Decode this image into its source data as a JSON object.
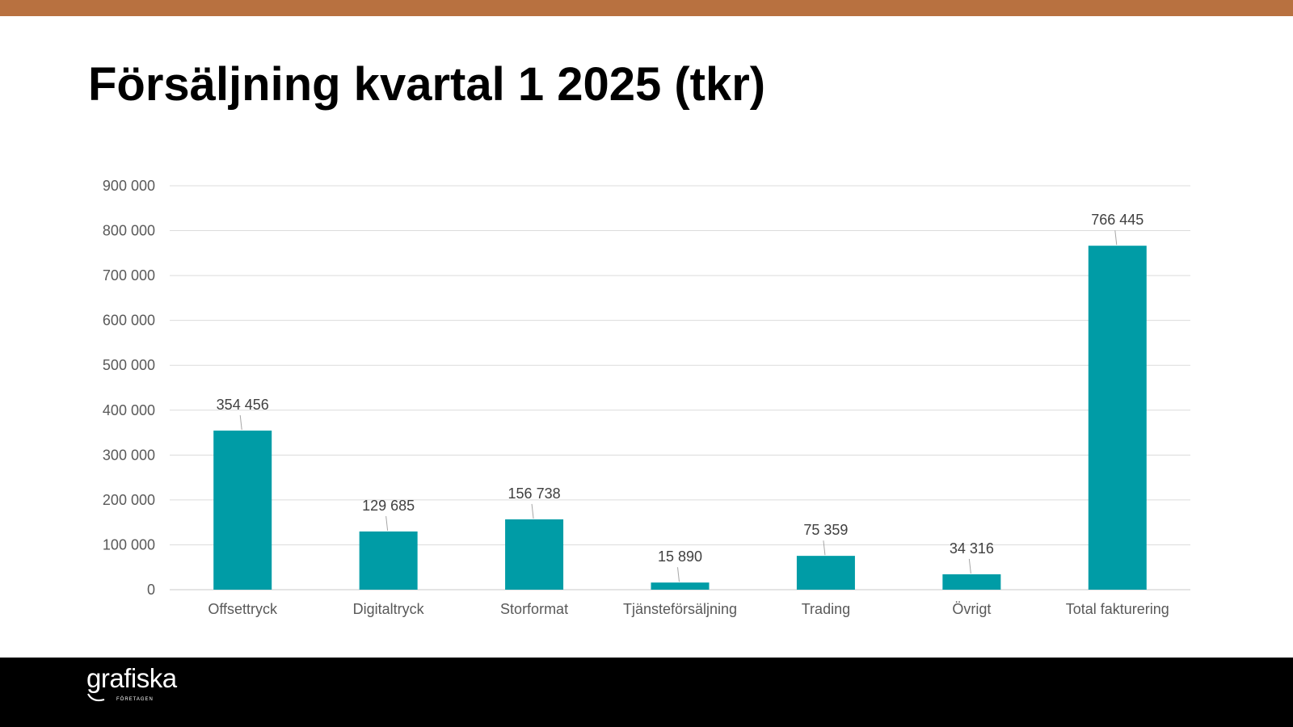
{
  "slide": {
    "title": "Försäljning kvartal 1 2025 (tkr)"
  },
  "brand": {
    "logo_text": "grafiska",
    "logo_subtext": "FÖRETAGEN",
    "accent_color": "#b87140",
    "bar_color": "#009ca6",
    "footer_color": "#000000"
  },
  "chart_data": {
    "type": "bar",
    "title": "",
    "xlabel": "",
    "ylabel": "",
    "categories": [
      "Offsettryck",
      "Digitaltryck",
      "Storformat",
      "Tjänsteförsäljning",
      "Trading",
      "Övrigt",
      "Total fakturering"
    ],
    "values": [
      354456,
      129685,
      156738,
      15890,
      75359,
      34316,
      766445
    ],
    "data_labels": [
      "354 456",
      "129 685",
      "156 738",
      "15 890",
      "75 359",
      "34 316",
      "766 445"
    ],
    "ylim": [
      0,
      900000
    ],
    "yticks": [
      0,
      100000,
      200000,
      300000,
      400000,
      500000,
      600000,
      700000,
      800000,
      900000
    ],
    "ytick_labels": [
      "0",
      "100 000",
      "200 000",
      "300 000",
      "400 000",
      "500 000",
      "600 000",
      "700 000",
      "800 000",
      "900 000"
    ],
    "grid": true,
    "legend": "none"
  }
}
